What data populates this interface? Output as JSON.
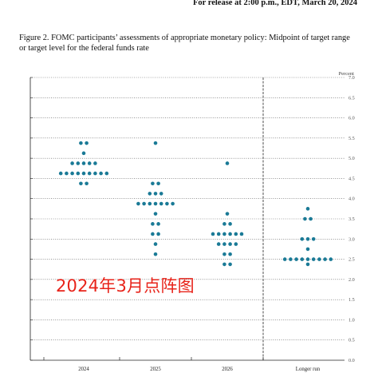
{
  "header": {
    "release": "For release at 2:00 p.m., EDT, March 20, 2024",
    "caption": "Figure 2.  FOMC participants’ assessments of appropriate monetary policy:  Midpoint of target range or target level for the federal funds rate"
  },
  "overlay_text": "2024年3月点阵图",
  "colors": {
    "dot": "#1a7a96",
    "overlay": "#e8231a"
  },
  "chart_data": {
    "type": "scatter",
    "title": "",
    "ylabel": "Percent",
    "ylim": [
      0.0,
      7.0
    ],
    "yticks": [
      "0.0",
      "0.5",
      "1.0",
      "1.5",
      "2.0",
      "2.5",
      "3.0",
      "3.5",
      "4.0",
      "4.5",
      "5.0",
      "5.5",
      "6.0",
      "6.5",
      "7.0"
    ],
    "categories": [
      "2024",
      "2025",
      "2026",
      "Longer run"
    ],
    "grid": "dotted horizontal",
    "dots": [
      {
        "category": "2024",
        "rows": [
          {
            "y": 5.375,
            "count": 2
          },
          {
            "y": 5.125,
            "count": 1
          },
          {
            "y": 4.875,
            "count": 5
          },
          {
            "y": 4.625,
            "count": 9
          },
          {
            "y": 4.375,
            "count": 2
          }
        ]
      },
      {
        "category": "2025",
        "rows": [
          {
            "y": 5.375,
            "count": 1
          },
          {
            "y": 4.375,
            "count": 2
          },
          {
            "y": 4.125,
            "count": 3
          },
          {
            "y": 3.875,
            "count": 7
          },
          {
            "y": 3.625,
            "count": 1
          },
          {
            "y": 3.375,
            "count": 2
          },
          {
            "y": 3.125,
            "count": 2
          },
          {
            "y": 2.875,
            "count": 1
          },
          {
            "y": 2.625,
            "count": 1
          }
        ]
      },
      {
        "category": "2026",
        "rows": [
          {
            "y": 4.875,
            "count": 1
          },
          {
            "y": 3.625,
            "count": 1
          },
          {
            "y": 3.375,
            "count": 2
          },
          {
            "y": 3.125,
            "count": 6
          },
          {
            "y": 2.875,
            "count": 4
          },
          {
            "y": 2.625,
            "count": 2
          },
          {
            "y": 2.375,
            "count": 2
          }
        ]
      },
      {
        "category": "Longer run",
        "rows": [
          {
            "y": 3.75,
            "count": 1
          },
          {
            "y": 3.5,
            "count": 2
          },
          {
            "y": 3.0,
            "count": 3
          },
          {
            "y": 2.75,
            "count": 1
          },
          {
            "y": 2.5,
            "count": 9
          },
          {
            "y": 2.375,
            "count": 1
          }
        ]
      }
    ]
  }
}
